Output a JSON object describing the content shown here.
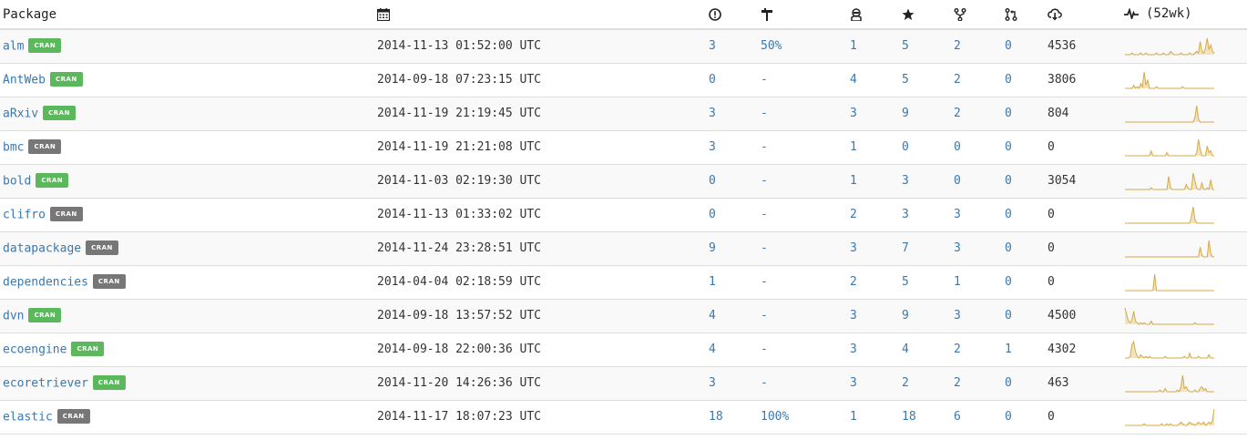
{
  "header": {
    "package_label": "Package",
    "date_icon": "calendar-icon",
    "issues_icon": "exclamation-circle-icon",
    "coverage_icon": "coverage-icon",
    "contributors_icon": "contributors-icon",
    "stars_icon": "star-icon",
    "forks_icon": "fork-icon",
    "prs_icon": "pull-request-icon",
    "downloads_icon": "cloud-download-icon",
    "trend_icon": "pulse-icon",
    "trend_label": "(52wk)"
  },
  "colors": {
    "link": "#3a78b0",
    "badge_green": "#5cb85c",
    "badge_gray": "#777777",
    "sparkline": "#d4a94a"
  },
  "rows": [
    {
      "name": "alm",
      "badge": "CRAN",
      "badge_color": "green",
      "date": "2014-11-13 01:52:00 UTC",
      "issues": "3",
      "coverage": "50%",
      "contributors": "1",
      "stars": "5",
      "forks": "2",
      "prs": "0",
      "downloads": "4536",
      "trend": [
        0,
        0,
        0,
        0,
        1,
        0,
        0,
        0,
        0,
        1,
        0,
        0,
        1,
        0,
        0,
        0,
        0,
        0,
        1,
        0,
        0,
        0,
        1,
        0,
        0,
        0,
        2,
        1,
        0,
        0,
        0,
        0,
        1,
        0,
        0,
        0,
        0,
        1,
        0,
        0,
        1,
        2,
        1,
        8,
        2,
        1,
        4,
        10,
        3,
        6,
        2,
        1
      ]
    },
    {
      "name": "AntWeb",
      "badge": "CRAN",
      "badge_color": "green",
      "date": "2014-09-18 07:23:15 UTC",
      "issues": "0",
      "coverage": "-",
      "contributors": "4",
      "stars": "5",
      "forks": "2",
      "prs": "0",
      "downloads": "3806",
      "trend": [
        0,
        0,
        0,
        0,
        0,
        2,
        0,
        1,
        0,
        3,
        1,
        10,
        2,
        5,
        0,
        0,
        0,
        0,
        1,
        0,
        0,
        0,
        0,
        0,
        0,
        0,
        0,
        0,
        0,
        0,
        0,
        0,
        0,
        1,
        0,
        0,
        0,
        0,
        0,
        0,
        0,
        0,
        0,
        0,
        0,
        0,
        0,
        0,
        0,
        0,
        0,
        0
      ]
    },
    {
      "name": "aRxiv",
      "badge": "CRAN",
      "badge_color": "green",
      "date": "2014-11-19 21:19:45 UTC",
      "issues": "3",
      "coverage": "-",
      "contributors": "3",
      "stars": "9",
      "forks": "2",
      "prs": "0",
      "downloads": "804",
      "trend": [
        0,
        0,
        0,
        0,
        0,
        0,
        0,
        0,
        0,
        0,
        0,
        0,
        0,
        0,
        0,
        0,
        0,
        0,
        0,
        0,
        0,
        0,
        0,
        0,
        0,
        0,
        0,
        0,
        0,
        0,
        0,
        0,
        0,
        0,
        0,
        0,
        0,
        0,
        0,
        0,
        3,
        10,
        2,
        0,
        0,
        0,
        0,
        0,
        0,
        0,
        0,
        0
      ]
    },
    {
      "name": "bmc",
      "badge": "CRAN",
      "badge_color": "gray",
      "date": "2014-11-19 21:21:08 UTC",
      "issues": "3",
      "coverage": "-",
      "contributors": "1",
      "stars": "0",
      "forks": "0",
      "prs": "0",
      "downloads": "0",
      "trend": [
        0,
        0,
        0,
        0,
        0,
        0,
        0,
        0,
        0,
        0,
        0,
        0,
        0,
        0,
        0,
        3,
        0,
        0,
        0,
        0,
        0,
        0,
        0,
        0,
        2,
        0,
        0,
        0,
        0,
        0,
        0,
        0,
        0,
        0,
        0,
        0,
        0,
        0,
        0,
        0,
        0,
        2,
        10,
        4,
        0,
        0,
        0,
        6,
        2,
        3,
        0,
        0
      ]
    },
    {
      "name": "bold",
      "badge": "CRAN",
      "badge_color": "green",
      "date": "2014-11-03 02:19:30 UTC",
      "issues": "0",
      "coverage": "-",
      "contributors": "1",
      "stars": "3",
      "forks": "0",
      "prs": "0",
      "downloads": "3054",
      "trend": [
        0,
        0,
        0,
        0,
        0,
        0,
        0,
        0,
        0,
        0,
        0,
        0,
        0,
        0,
        0,
        1,
        0,
        0,
        0,
        0,
        0,
        0,
        0,
        0,
        0,
        8,
        1,
        0,
        0,
        0,
        0,
        0,
        0,
        0,
        0,
        3,
        1,
        0,
        0,
        10,
        5,
        1,
        0,
        0,
        4,
        0,
        0,
        1,
        0,
        6,
        0,
        0
      ]
    },
    {
      "name": "clifro",
      "badge": "CRAN",
      "badge_color": "gray",
      "date": "2014-11-13 01:33:02 UTC",
      "issues": "0",
      "coverage": "-",
      "contributors": "2",
      "stars": "3",
      "forks": "3",
      "prs": "0",
      "downloads": "0",
      "trend": [
        0,
        0,
        0,
        0,
        0,
        0,
        0,
        0,
        0,
        0,
        0,
        0,
        0,
        0,
        0,
        0,
        0,
        0,
        0,
        0,
        0,
        0,
        0,
        0,
        0,
        0,
        0,
        0,
        0,
        0,
        0,
        0,
        0,
        0,
        0,
        0,
        0,
        0,
        4,
        10,
        2,
        0,
        0,
        0,
        0,
        0,
        0,
        0,
        0,
        0,
        0,
        0
      ]
    },
    {
      "name": "datapackage",
      "badge": "CRAN",
      "badge_color": "gray",
      "date": "2014-11-24 23:28:51 UTC",
      "issues": "9",
      "coverage": "-",
      "contributors": "3",
      "stars": "7",
      "forks": "3",
      "prs": "0",
      "downloads": "0",
      "trend": [
        0,
        0,
        0,
        0,
        0,
        0,
        0,
        0,
        0,
        0,
        0,
        0,
        0,
        0,
        0,
        0,
        0,
        0,
        0,
        0,
        0,
        0,
        0,
        0,
        0,
        0,
        0,
        0,
        0,
        0,
        0,
        0,
        0,
        0,
        0,
        0,
        0,
        0,
        0,
        0,
        0,
        0,
        0,
        6,
        1,
        0,
        0,
        0,
        10,
        2,
        0,
        0
      ]
    },
    {
      "name": "dependencies",
      "badge": "CRAN",
      "badge_color": "gray",
      "date": "2014-04-04 02:18:59 UTC",
      "issues": "1",
      "coverage": "-",
      "contributors": "2",
      "stars": "5",
      "forks": "1",
      "prs": "0",
      "downloads": "0",
      "trend": [
        0,
        0,
        0,
        0,
        0,
        0,
        0,
        0,
        0,
        0,
        0,
        0,
        0,
        0,
        0,
        0,
        0,
        10,
        0,
        0,
        0,
        0,
        0,
        0,
        0,
        0,
        0,
        0,
        0,
        0,
        0,
        0,
        0,
        0,
        0,
        0,
        0,
        0,
        0,
        0,
        0,
        0,
        0,
        0,
        0,
        0,
        0,
        0,
        0,
        0,
        0,
        0
      ]
    },
    {
      "name": "dvn",
      "badge": "CRAN",
      "badge_color": "green",
      "date": "2014-09-18 13:57:52 UTC",
      "issues": "4",
      "coverage": "-",
      "contributors": "3",
      "stars": "9",
      "forks": "3",
      "prs": "0",
      "downloads": "4500",
      "trend": [
        10,
        6,
        2,
        1,
        3,
        8,
        2,
        1,
        0,
        1,
        0,
        1,
        0,
        0,
        0,
        2,
        0,
        0,
        0,
        0,
        0,
        0,
        0,
        0,
        0,
        0,
        0,
        0,
        0,
        0,
        0,
        0,
        0,
        0,
        0,
        0,
        0,
        0,
        0,
        0,
        1,
        0,
        0,
        0,
        0,
        0,
        0,
        0,
        0,
        0,
        0,
        0
      ]
    },
    {
      "name": "ecoengine",
      "badge": "CRAN",
      "badge_color": "green",
      "date": "2014-09-18 22:00:36 UTC",
      "issues": "4",
      "coverage": "-",
      "contributors": "3",
      "stars": "4",
      "forks": "2",
      "prs": "1",
      "downloads": "4302",
      "trend": [
        0,
        0,
        0,
        1,
        8,
        10,
        4,
        1,
        0,
        2,
        1,
        0,
        1,
        0,
        1,
        0,
        0,
        0,
        0,
        0,
        0,
        0,
        0,
        1,
        0,
        0,
        0,
        0,
        0,
        0,
        0,
        0,
        0,
        0,
        1,
        0,
        0,
        3,
        0,
        0,
        0,
        0,
        1,
        0,
        0,
        0,
        0,
        0,
        2,
        0,
        0,
        0
      ]
    },
    {
      "name": "ecoretriever",
      "badge": "CRAN",
      "badge_color": "green",
      "date": "2014-11-20 14:26:36 UTC",
      "issues": "3",
      "coverage": "-",
      "contributors": "3",
      "stars": "2",
      "forks": "2",
      "prs": "0",
      "downloads": "463",
      "trend": [
        0,
        0,
        0,
        0,
        0,
        0,
        0,
        0,
        0,
        0,
        0,
        0,
        0,
        0,
        0,
        0,
        0,
        0,
        0,
        0,
        1,
        0,
        0,
        2,
        0,
        0,
        0,
        0,
        0,
        0,
        1,
        0,
        3,
        10,
        2,
        3,
        1,
        0,
        0,
        0,
        1,
        0,
        0,
        2,
        3,
        1,
        2,
        0,
        0,
        0,
        0,
        0
      ]
    },
    {
      "name": "elastic",
      "badge": "CRAN",
      "badge_color": "gray",
      "date": "2014-11-17 18:07:23 UTC",
      "issues": "18",
      "coverage": "100%",
      "contributors": "1",
      "stars": "18",
      "forks": "6",
      "prs": "0",
      "downloads": "0",
      "trend": [
        0,
        0,
        0,
        0,
        0,
        0,
        0,
        0,
        0,
        0,
        0,
        1,
        0,
        0,
        0,
        0,
        0,
        0,
        0,
        0,
        0,
        1,
        0,
        0,
        1,
        0,
        1,
        0,
        0,
        0,
        0,
        1,
        2,
        1,
        0,
        0,
        1,
        2,
        1,
        1,
        0,
        1,
        2,
        1,
        1,
        2,
        0,
        1,
        2,
        1,
        3,
        10
      ]
    }
  ]
}
